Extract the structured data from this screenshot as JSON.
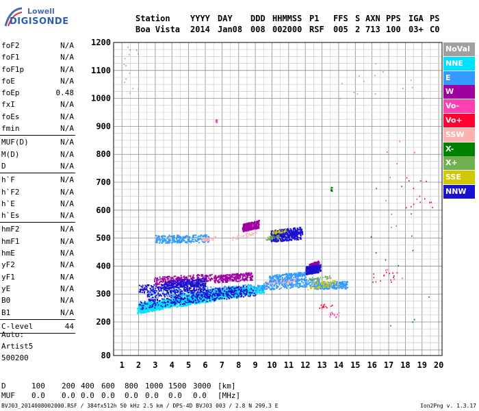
{
  "logo": {
    "line1": "Lowell",
    "line2": "DIGISONDE"
  },
  "header": {
    "columns": [
      {
        "label": "Station",
        "value": "Boa Vista"
      },
      {
        "label": "YYYY",
        "value": "2014"
      },
      {
        "label": "DAY",
        "value": "Jan08"
      },
      {
        "label": "DDD",
        "value": "008"
      },
      {
        "label": "HHMMSS",
        "value": "002000"
      },
      {
        "label": "P1",
        "value": "RSF"
      },
      {
        "label": "FFS",
        "value": "005"
      },
      {
        "label": "S",
        "value": "2"
      },
      {
        "label": "AXN",
        "value": "713"
      },
      {
        "label": "PPS",
        "value": "100"
      },
      {
        "label": "IGA",
        "value": "03+"
      },
      {
        "label": "PS",
        "value": "C0"
      }
    ]
  },
  "params": [
    [
      {
        "name": "foF2",
        "value": "N/A"
      },
      {
        "name": "foF1",
        "value": "N/A"
      },
      {
        "name": "foF1p",
        "value": "N/A"
      },
      {
        "name": "foE",
        "value": "N/A"
      },
      {
        "name": "foEp",
        "value": "0.48"
      },
      {
        "name": "fxI",
        "value": "N/A"
      },
      {
        "name": "foEs",
        "value": "N/A"
      },
      {
        "name": "fmin",
        "value": "N/A"
      }
    ],
    [
      {
        "name": "MUF(D)",
        "value": "N/A"
      },
      {
        "name": "M(D)",
        "value": "N/A"
      },
      {
        "name": "D",
        "value": "N/A"
      }
    ],
    [
      {
        "name": "h`F",
        "value": "N/A"
      },
      {
        "name": "h`F2",
        "value": "N/A"
      },
      {
        "name": "h`E",
        "value": "N/A"
      },
      {
        "name": "h`Es",
        "value": "N/A"
      }
    ],
    [
      {
        "name": "hmF2",
        "value": "N/A"
      },
      {
        "name": "hmF1",
        "value": "N/A"
      },
      {
        "name": "hmE",
        "value": "N/A"
      },
      {
        "name": "yF2",
        "value": "N/A"
      },
      {
        "name": "yF1",
        "value": "N/A"
      },
      {
        "name": "yE",
        "value": "N/A"
      },
      {
        "name": "B0",
        "value": "N/A"
      },
      {
        "name": "B1",
        "value": "N/A"
      }
    ],
    [
      {
        "name": "C-level",
        "value": "44"
      }
    ]
  ],
  "auto": {
    "line1": "Auto:",
    "line2": "Artist5",
    "line3": "500200"
  },
  "legend": [
    {
      "label": "NoVal",
      "color": "#a0a0a0"
    },
    {
      "label": "NNE",
      "color": "#00e0ff"
    },
    {
      "label": "E",
      "color": "#3399ff"
    },
    {
      "label": "W",
      "color": "#a000a0"
    },
    {
      "label": "Vo-",
      "color": "#ff40b0"
    },
    {
      "label": "Vo+",
      "color": "#ff0030"
    },
    {
      "label": "SSW",
      "color": "#ffb0b0"
    },
    {
      "label": "X-",
      "color": "#008000"
    },
    {
      "label": "X+",
      "color": "#70b050"
    },
    {
      "label": "SSE",
      "color": "#d0c800"
    },
    {
      "label": "NNW",
      "color": "#1a10d0"
    }
  ],
  "muf_table": {
    "d_label": "D",
    "d_values": [
      "100",
      "200",
      "400",
      "600",
      "800",
      "1000",
      "1500",
      "3000"
    ],
    "d_unit": "[km]",
    "muf_label": "MUF",
    "muf_values": [
      "0.0",
      "0.0",
      "0.0",
      "0.0",
      "0.0",
      "0.0",
      "0.0",
      "0.0"
    ],
    "muf_unit": "[MHz]"
  },
  "footer": {
    "left": "BVJ03_2014008002000.RSF / 384fx512h 50 kHz 2.5 km / DPS-4D BVJ03 003 / 2.8 N 299.3 E",
    "right": "Ion2Png v. 1.3.17"
  },
  "chart_data": {
    "type": "scatter",
    "title": "",
    "xlabel": "",
    "ylabel": "",
    "xlim": [
      0.5,
      20.2
    ],
    "ylim": [
      80,
      1200
    ],
    "x_ticks": [
      1,
      2,
      3,
      4,
      5,
      6,
      7,
      8,
      9,
      10,
      11,
      12,
      13,
      14,
      15,
      16,
      17,
      18,
      19,
      20
    ],
    "y_ticks": [
      80,
      200,
      300,
      400,
      500,
      600,
      700,
      800,
      900,
      1000,
      1100,
      1200
    ],
    "grid": true,
    "legend_placement": "right",
    "x_gridlines": [
      1,
      1.5,
      2,
      2.5,
      3,
      3.5,
      4,
      4.5,
      5,
      5.5,
      6,
      6.5,
      7,
      7.5,
      8,
      8.5,
      9,
      9.5,
      10,
      10.5,
      11,
      11.5,
      12,
      12.5,
      13,
      13.5,
      14,
      14.5,
      15,
      15.5,
      16,
      16.5,
      17,
      17.5,
      18,
      18.5,
      19,
      19.5,
      20
    ],
    "y_gridlines": [
      100,
      125,
      150,
      175,
      200,
      225,
      250,
      275,
      300,
      325,
      350,
      375,
      400,
      425,
      450,
      475,
      500,
      525,
      550,
      575,
      600,
      625,
      650,
      675,
      700,
      725,
      750,
      775,
      800,
      825,
      850,
      875,
      900,
      925,
      950,
      975,
      1000,
      1025,
      1050,
      1075,
      1100,
      1125,
      1150,
      1175,
      1200
    ],
    "series": [
      {
        "name": "NNE",
        "color": "#00e0ff",
        "segments": [
          [
            1.9,
            245,
            3.5,
            262
          ],
          [
            3.5,
            265,
            5.0,
            275
          ],
          [
            5.0,
            278,
            6.5,
            290
          ],
          [
            6.5,
            295,
            8.0,
            305
          ],
          [
            8.0,
            310,
            9.5,
            320
          ],
          [
            2.0,
            255,
            4.0,
            272
          ],
          [
            4.0,
            283,
            6.0,
            295
          ],
          [
            6.0,
            305,
            8.0,
            318
          ]
        ]
      },
      {
        "name": "E",
        "color": "#3399ff",
        "segments": [
          [
            2.5,
            300,
            9.5,
            325
          ],
          [
            9.5,
            330,
            12.8,
            345
          ],
          [
            3.0,
            498,
            6.2,
            500
          ],
          [
            9.8,
            355,
            12.0,
            368
          ],
          [
            12.5,
            332,
            14.5,
            335
          ]
        ]
      },
      {
        "name": "W",
        "color": "#a000a0",
        "segments": [
          [
            2.9,
            348,
            6.4,
            362
          ],
          [
            6.5,
            355,
            8.8,
            366
          ],
          [
            8.2,
            538,
            9.2,
            552
          ],
          [
            12.2,
            395,
            12.8,
            408
          ]
        ]
      },
      {
        "name": "NNW",
        "color": "#1a10d0",
        "segments": [
          [
            2.0,
            260,
            9.0,
            310
          ],
          [
            2.0,
            320,
            6.0,
            328
          ],
          [
            2.5,
            290,
            8.5,
            318
          ],
          [
            9.9,
            515,
            11.8,
            528
          ],
          [
            9.9,
            502,
            11.7,
            510
          ],
          [
            12.0,
            385,
            12.9,
            394
          ],
          [
            3.5,
            335,
            6.0,
            345
          ]
        ]
      },
      {
        "name": "SSW",
        "color": "#ffb0b0",
        "segments": [
          [
            7.6,
            500,
            9.1,
            522
          ],
          [
            5.8,
            497,
            6.6,
            502
          ],
          [
            9.5,
            340,
            11.5,
            350
          ]
        ]
      },
      {
        "name": "SSE",
        "color": "#d0c800",
        "segments": [
          [
            12.0,
            322,
            14.0,
            334
          ],
          [
            10.0,
            522,
            10.8,
            528
          ],
          [
            12.5,
            340,
            13.8,
            345
          ]
        ]
      },
      {
        "name": "X+",
        "color": "#70b050",
        "segments": [
          [
            12.2,
            355,
            13.5,
            362
          ],
          [
            9.6,
            500,
            10.4,
            508
          ]
        ]
      },
      {
        "name": "Vo+",
        "color": "#ff0030",
        "segments": [
          [
            12.8,
            250,
            13.6,
            265
          ],
          [
            16.0,
            340,
            17.8,
            380
          ],
          [
            18.0,
            600,
            19.6,
            720
          ]
        ]
      },
      {
        "name": "Vo-",
        "color": "#ff40b0",
        "segments": [
          [
            6.6,
            915,
            6.7,
            925
          ],
          [
            13.4,
            215,
            14.0,
            240
          ],
          [
            16.5,
            330,
            18.8,
            860
          ]
        ]
      },
      {
        "name": "X-",
        "color": "#008000",
        "segments": [
          [
            13.5,
            670,
            13.6,
            685
          ],
          [
            15.8,
            180,
            19.5,
            700
          ]
        ]
      },
      {
        "name": "NoVal",
        "color": "#a0a0a0",
        "segments": [
          [
            1.0,
            1000,
            2.0,
            1190
          ],
          [
            14.0,
            1000,
            19.5,
            1190
          ]
        ]
      }
    ]
  }
}
